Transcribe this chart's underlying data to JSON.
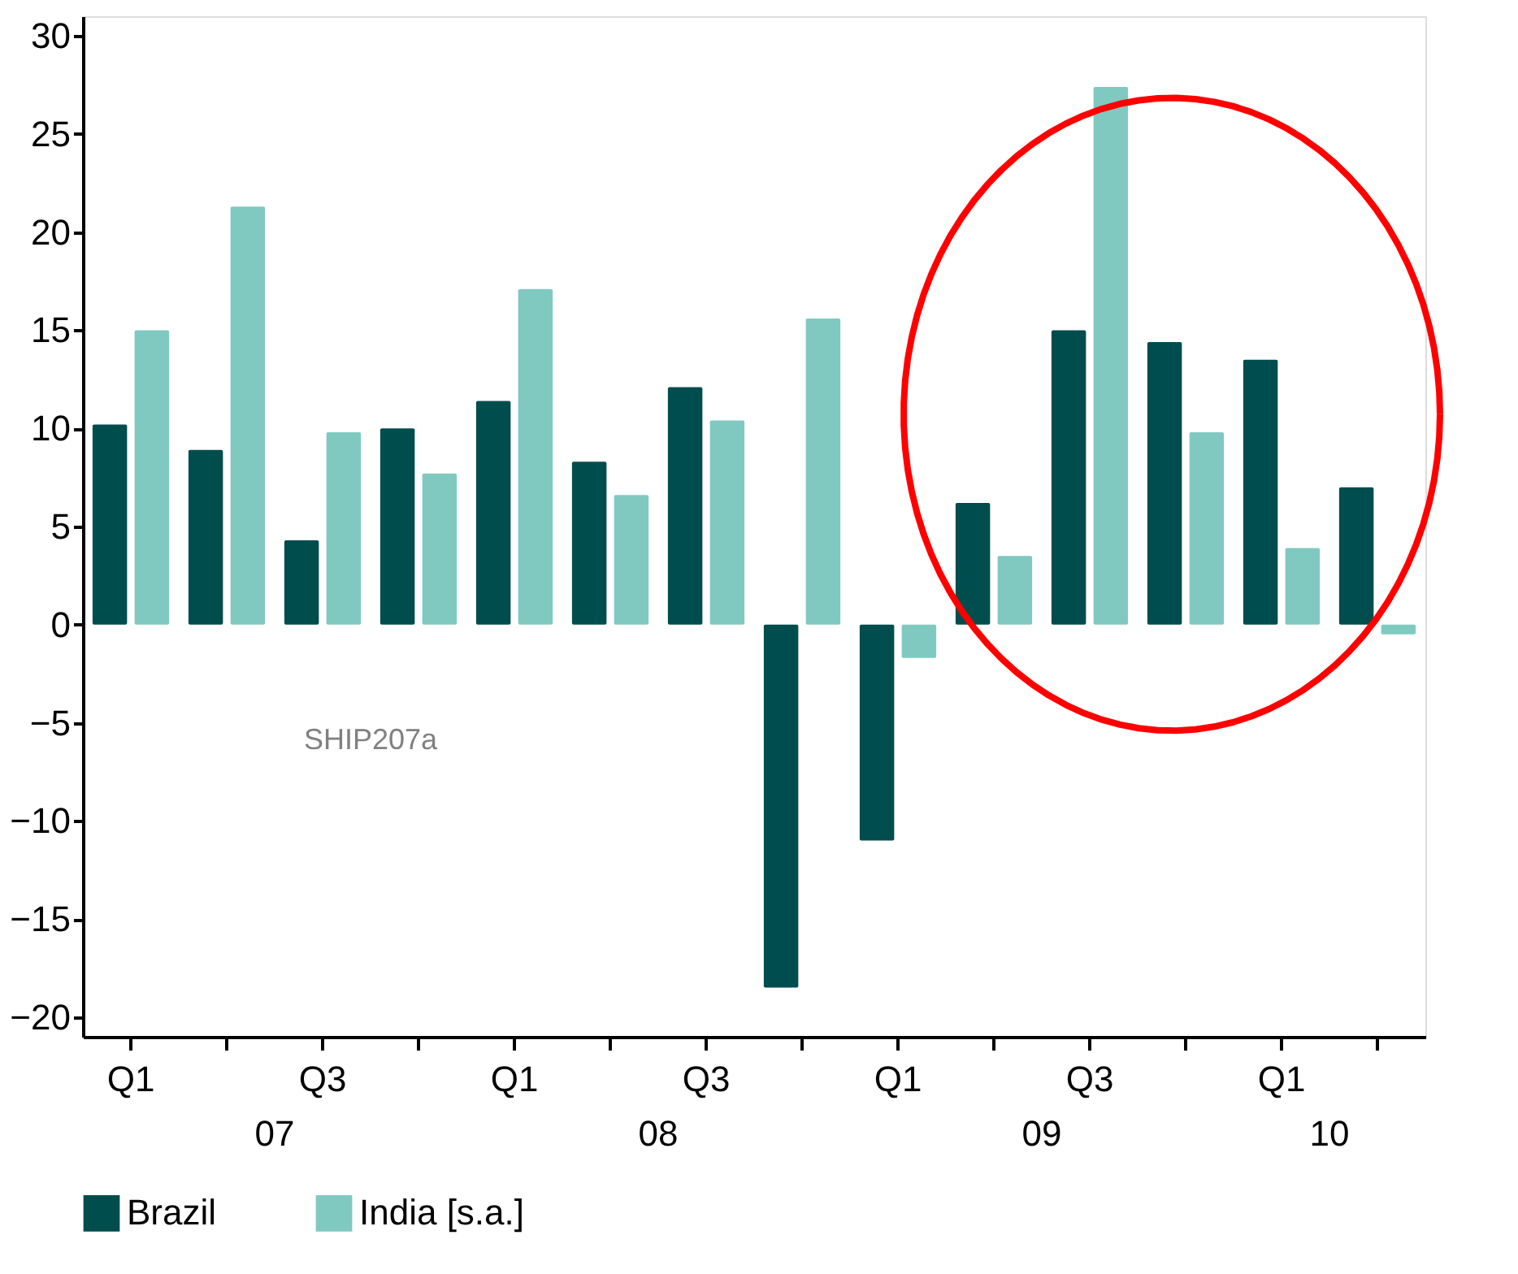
{
  "chart_data": {
    "type": "bar",
    "categories": [
      "Q1",
      null,
      "Q3",
      null,
      "Q1",
      null,
      "Q3",
      null,
      "Q1",
      null,
      "Q3",
      null,
      "Q1",
      null
    ],
    "series": [
      {
        "name": "Brazil",
        "color": "#004d4d",
        "values": [
          10.2,
          8.9,
          4.3,
          10.0,
          11.4,
          8.3,
          12.1,
          -18.5,
          -11.0,
          6.2,
          15.0,
          14.4,
          13.5,
          7.0
        ]
      },
      {
        "name": "India [s.a.]",
        "color": "#80c9c1",
        "values": [
          15.0,
          21.3,
          9.8,
          7.7,
          17.1,
          6.6,
          10.4,
          15.6,
          -1.7,
          3.5,
          27.4,
          9.8,
          3.9,
          -0.5
        ]
      }
    ],
    "ylim": [
      -21,
      31
    ],
    "yticks": [
      -20,
      -15,
      -10,
      -5,
      0,
      5,
      10,
      15,
      20,
      25,
      30
    ],
    "annotations": [
      "SHIP207a",
      "07",
      "08",
      "09",
      "10"
    ],
    "grid": false,
    "legend": "bottom"
  }
}
